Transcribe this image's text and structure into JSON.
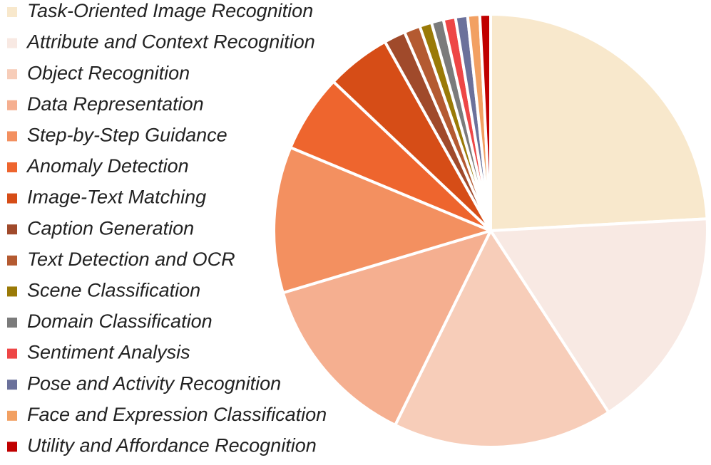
{
  "chart_data": {
    "type": "pie",
    "categories": [
      "Task-Oriented Image Recognition",
      "Attribute and Context Recognition",
      "Object Recognition",
      "Data Representation",
      "Step-by-Step Guidance",
      "Anomaly Detection",
      "Image-Text Matching",
      "Caption Generation",
      "Text Detection and OCR",
      "Scene Classification",
      "Domain Classification",
      "Sentiment Analysis",
      "Pose and Activity Recognition",
      "Face and Expression Classification",
      "Utility and Affordance Recognition"
    ],
    "values": [
      24.1,
      16.7,
      16.4,
      13.1,
      10.9,
      5.8,
      4.8,
      1.6,
      1.2,
      0.9,
      0.9,
      0.9,
      0.9,
      0.9,
      0.8
    ],
    "colors": [
      "#f8e8cc",
      "#f8e9e3",
      "#f7cdb9",
      "#f5af90",
      "#f39060",
      "#ee652e",
      "#d64d17",
      "#a04a2b",
      "#b45a31",
      "#9a7a07",
      "#7b7b7b",
      "#ee4646",
      "#6b719b",
      "#f2a062",
      "#c00000"
    ],
    "legend": "left"
  }
}
